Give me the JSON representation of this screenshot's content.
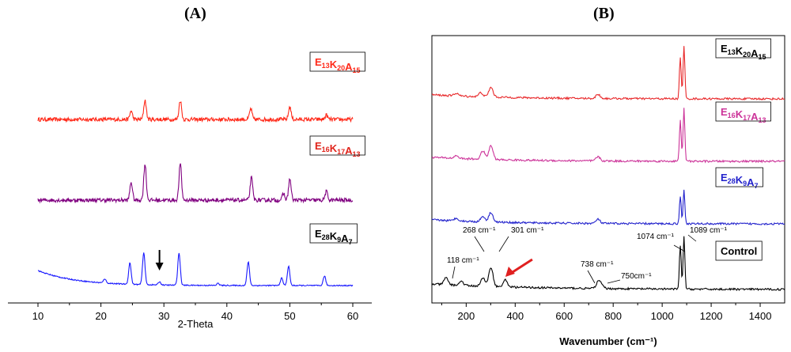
{
  "panels": {
    "a_label": "(A)",
    "b_label": "(B)"
  },
  "chart_data": [
    {
      "type": "line",
      "panel": "(A)",
      "xlabel": "2-Theta",
      "ylabel": "",
      "xlim": [
        10,
        60
      ],
      "xticks": [
        "10",
        "20",
        "30",
        "40",
        "50",
        "60"
      ],
      "y_ticks_shown": false,
      "legend_placement": "right of each trace, boxed",
      "series": [
        {
          "name_parts": [
            [
              "E",
              "13"
            ],
            [
              "K",
              "20"
            ],
            [
              "A",
              "15"
            ]
          ],
          "color": "#ff2a1a",
          "offset_level": 2,
          "noise": 0.9,
          "peaks": [
            [
              24.8,
              8
            ],
            [
              27.0,
              18
            ],
            [
              32.6,
              18
            ],
            [
              43.8,
              10
            ],
            [
              50.0,
              12
            ],
            [
              55.8,
              4
            ]
          ]
        },
        {
          "name_parts": [
            [
              "E",
              "16"
            ],
            [
              "K",
              "17"
            ],
            [
              "A",
              "13"
            ]
          ],
          "color": "#800080",
          "offset_level": 1,
          "noise": 0.9,
          "peaks": [
            [
              24.8,
              17
            ],
            [
              27.0,
              34
            ],
            [
              32.6,
              34
            ],
            [
              43.9,
              21
            ],
            [
              49.0,
              6
            ],
            [
              50.0,
              20
            ],
            [
              55.8,
              8
            ]
          ]
        },
        {
          "name_parts": [
            [
              "E",
              "28"
            ],
            [
              "K",
              "9"
            ],
            [
              "A",
              "7"
            ]
          ],
          "color": "#1a1aff",
          "offset_level": 0,
          "noise": 0.25,
          "peaks": [
            [
              20.6,
              4
            ],
            [
              24.6,
              20
            ],
            [
              26.8,
              30
            ],
            [
              29.3,
              3
            ],
            [
              32.4,
              30
            ],
            [
              38.6,
              2
            ],
            [
              43.4,
              22
            ],
            [
              48.7,
              7
            ],
            [
              49.8,
              18
            ],
            [
              55.5,
              9
            ]
          ]
        }
      ],
      "annotations": [
        {
          "type": "arrow",
          "x": 29.3,
          "color": "#000000"
        }
      ]
    },
    {
      "type": "line",
      "panel": "(B)",
      "xlabel": "Wavenumber (cm⁻¹)",
      "ylabel": "",
      "xlim": [
        60,
        1500
      ],
      "xticks": [
        "200",
        "400",
        "600",
        "800",
        "1000",
        "1200",
        "1400"
      ],
      "y_ticks_shown": false,
      "legend_placement": "top-right of each trace, boxed",
      "series": [
        {
          "name_parts": [
            [
              "E",
              "13"
            ],
            [
              "K",
              "20"
            ],
            [
              "A",
              "15"
            ]
          ],
          "color": "#e8282a",
          "offset_level": 3,
          "peaks": [
            [
              160,
              2
            ],
            [
              260,
              3
            ],
            [
              301,
              7
            ],
            [
              738,
              3
            ],
            [
              1074,
              30
            ],
            [
              1089,
              38
            ]
          ]
        },
        {
          "name_parts": [
            [
              "E",
              "16"
            ],
            [
              "K",
              "17"
            ],
            [
              "A",
              "13"
            ]
          ],
          "color": "#cc3399",
          "offset_level": 2,
          "peaks": [
            [
              160,
              2
            ],
            [
              268,
              6
            ],
            [
              301,
              10
            ],
            [
              738,
              3
            ],
            [
              1074,
              30
            ],
            [
              1089,
              38
            ]
          ]
        },
        {
          "name_parts": [
            [
              "E",
              "28"
            ],
            [
              "K",
              "9"
            ],
            [
              "A",
              "7"
            ]
          ],
          "color": "#2222cc",
          "offset_level": 1,
          "peaks": [
            [
              160,
              2
            ],
            [
              268,
              4
            ],
            [
              301,
              7
            ],
            [
              738,
              3
            ],
            [
              1074,
              20
            ],
            [
              1089,
              24
            ]
          ]
        },
        {
          "name": "Control",
          "color": "#000000",
          "offset_level": 0,
          "peaks": [
            [
              118,
              5
            ],
            [
              180,
              3
            ],
            [
              268,
              6
            ],
            [
              301,
              14
            ],
            [
              360,
              5
            ],
            [
              738,
              4
            ],
            [
              750,
              3
            ],
            [
              1074,
              32
            ],
            [
              1089,
              38
            ]
          ]
        }
      ],
      "annotations": [
        {
          "text": "118 cm⁻¹"
        },
        {
          "text": "268 cm⁻¹"
        },
        {
          "text": "301 cm⁻¹"
        },
        {
          "text": "738 cm⁻¹"
        },
        {
          "text": "750cm⁻¹"
        },
        {
          "text": "1074 cm⁻¹"
        },
        {
          "text": "1089 cm⁻¹"
        },
        {
          "type": "arrow",
          "x": 360,
          "color": "#e02020"
        }
      ]
    }
  ]
}
